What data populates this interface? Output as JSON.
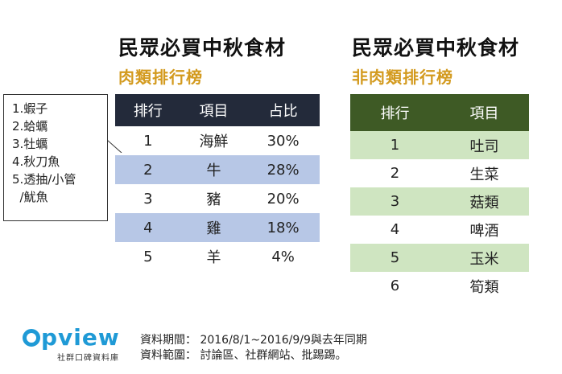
{
  "left": {
    "title": "民眾必買中秋食材",
    "subtitle": "肉類排行榜",
    "headers": [
      "排行",
      "項目",
      "占比"
    ],
    "rows": [
      {
        "rank": "1",
        "item": "海鮮",
        "share": "30%"
      },
      {
        "rank": "2",
        "item": "牛",
        "share": "28%"
      },
      {
        "rank": "3",
        "item": "豬",
        "share": "20%"
      },
      {
        "rank": "4",
        "item": "雞",
        "share": "18%"
      },
      {
        "rank": "5",
        "item": "羊",
        "share": "4%"
      }
    ],
    "header_color": "#232a3a",
    "stripe_color": "#b7c7e6"
  },
  "right": {
    "title": "民眾必買中秋食材",
    "subtitle": "非肉類排行榜",
    "headers": [
      "排行",
      "項目"
    ],
    "rows": [
      {
        "rank": "1",
        "item": "吐司"
      },
      {
        "rank": "2",
        "item": "生菜"
      },
      {
        "rank": "3",
        "item": "菇類"
      },
      {
        "rank": "4",
        "item": "啤酒"
      },
      {
        "rank": "5",
        "item": "玉米"
      },
      {
        "rank": "6",
        "item": "筍類"
      }
    ],
    "header_color": "#3e5a25",
    "stripe_color": "#cfe5c1"
  },
  "note": {
    "lines": [
      "1.蝦子",
      "2.蛤蠣",
      "3.牡蠣",
      "4.秋刀魚",
      "5.透抽/小管",
      "  /魷魚"
    ]
  },
  "footer": {
    "logo": "pview",
    "logo_sub": "社群口碑資料庫",
    "period": "資料期間： 2016/8/1~2016/9/9與去年同期",
    "scope": "資料範圍： 討論區、社群網站、批踢踢。",
    "brand_color": "#1f9ad6"
  }
}
